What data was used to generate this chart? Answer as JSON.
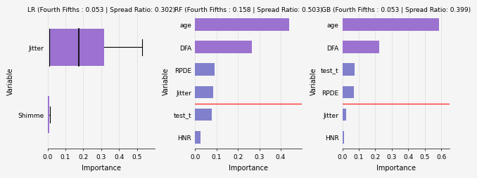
{
  "plots": [
    {
      "title": "LR (Fourth Fifths : 0.053 | Spread Ratio: 0.302)",
      "categories": [
        "Shimme",
        "Jitter"
      ],
      "values": [
        0.01,
        0.315
      ],
      "bar_colors": [
        "#9b72cf",
        "#9b72cf"
      ],
      "redline_show": true,
      "redline_y": -0.62,
      "xlim": [
        0,
        0.6
      ],
      "xticks": [
        0.0,
        0.1,
        0.2,
        0.3,
        0.4,
        0.5
      ],
      "has_whisker": true,
      "q1": 0.01,
      "q3": 0.315,
      "median": 0.175,
      "whisker_high": 0.53,
      "shimme_whisker": 0.013
    },
    {
      "title": "RF (Fourth Fifths : 0.158 | Spread Ratio: 0.503)",
      "categories": [
        "HNR",
        "test_t",
        "Jitter",
        "RPDE",
        "DFA",
        "age"
      ],
      "values": [
        0.025,
        0.08,
        0.085,
        0.09,
        0.265,
        0.44
      ],
      "bar_colors": [
        "#8080cc",
        "#8080cc",
        "#8080cc",
        "#8080cc",
        "#9b72cf",
        "#9b72cf"
      ],
      "redline_show": true,
      "redline_y": 1.5,
      "xlim": [
        0,
        0.5
      ],
      "xticks": [
        0.0,
        0.1,
        0.2,
        0.3,
        0.4
      ],
      "has_whisker": false
    },
    {
      "title": "GB (Fourth Fifths : 0.053 | Spread Ratio: 0.399)",
      "categories": [
        "HNR",
        "Jitter",
        "RPDE",
        "test_t",
        "DFA",
        "age"
      ],
      "values": [
        0.01,
        0.025,
        0.07,
        0.075,
        0.225,
        0.585
      ],
      "bar_colors": [
        "#8080cc",
        "#8080cc",
        "#8080cc",
        "#8080cc",
        "#9b72cf",
        "#9b72cf"
      ],
      "redline_show": true,
      "redline_y": 1.5,
      "xlim": [
        0,
        0.65
      ],
      "xticks": [
        0.0,
        0.1,
        0.2,
        0.3,
        0.4,
        0.5,
        0.6
      ],
      "has_whisker": false
    }
  ],
  "ylabel": "Variable",
  "xlabel": "Importance",
  "fig_width": 6.4,
  "fig_height": 2.46,
  "background_color": "#f5f5f5",
  "title_fontsize": 6.5,
  "label_fontsize": 7,
  "tick_fontsize": 6.5,
  "redline_color": "#ff3333",
  "grid_color": "#dddddd"
}
